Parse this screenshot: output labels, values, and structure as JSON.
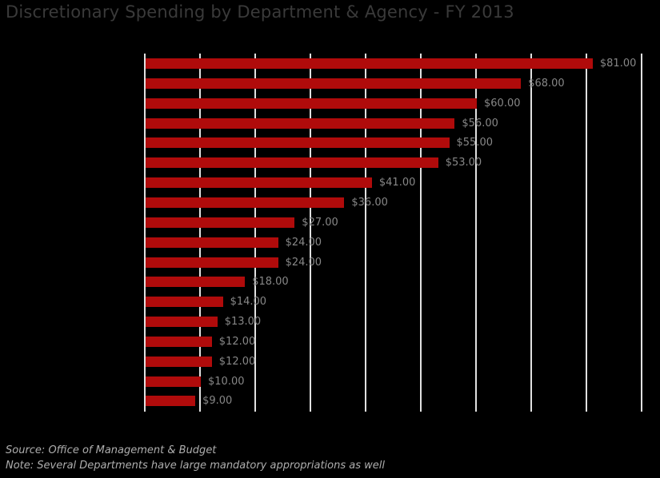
{
  "title": "Discretionary Spending by Department & Agency - FY 2013",
  "footer": {
    "source": "Source: Office of Management & Budget",
    "note": "Note: Several Departments have large mandatory appropriations as well"
  },
  "colors": {
    "background": "#000000",
    "bar": "#b00b0b",
    "gridline": "#e0e0e0",
    "value_label": "#878787",
    "title_text": "#3a3a3a",
    "footer_text": "#aeaeae"
  },
  "chart_data": {
    "type": "bar",
    "orientation": "horizontal",
    "title": "Discretionary Spending by Department & Agency - FY 2013",
    "xlabel": "",
    "ylabel": "",
    "values": [
      81,
      68,
      60,
      56,
      55,
      53,
      41,
      36,
      27,
      24,
      24,
      18,
      14,
      13,
      12,
      12,
      10,
      9
    ],
    "labels": [
      "$81.00",
      "$68.00",
      "$60.00",
      "$56.00",
      "$55.00",
      "$53.00",
      "$41.00",
      "$36.00",
      "$27.00",
      "$24.00",
      "$24.00",
      "$18.00",
      "$14.00",
      "$13.00",
      "$12.00",
      "$12.00",
      "$10.00",
      "$9.00"
    ],
    "xlim": [
      0,
      90
    ],
    "grid_interval": 10,
    "grid": true,
    "legend": false,
    "axis_tick_labels_visible": false,
    "category_labels_visible": false
  }
}
